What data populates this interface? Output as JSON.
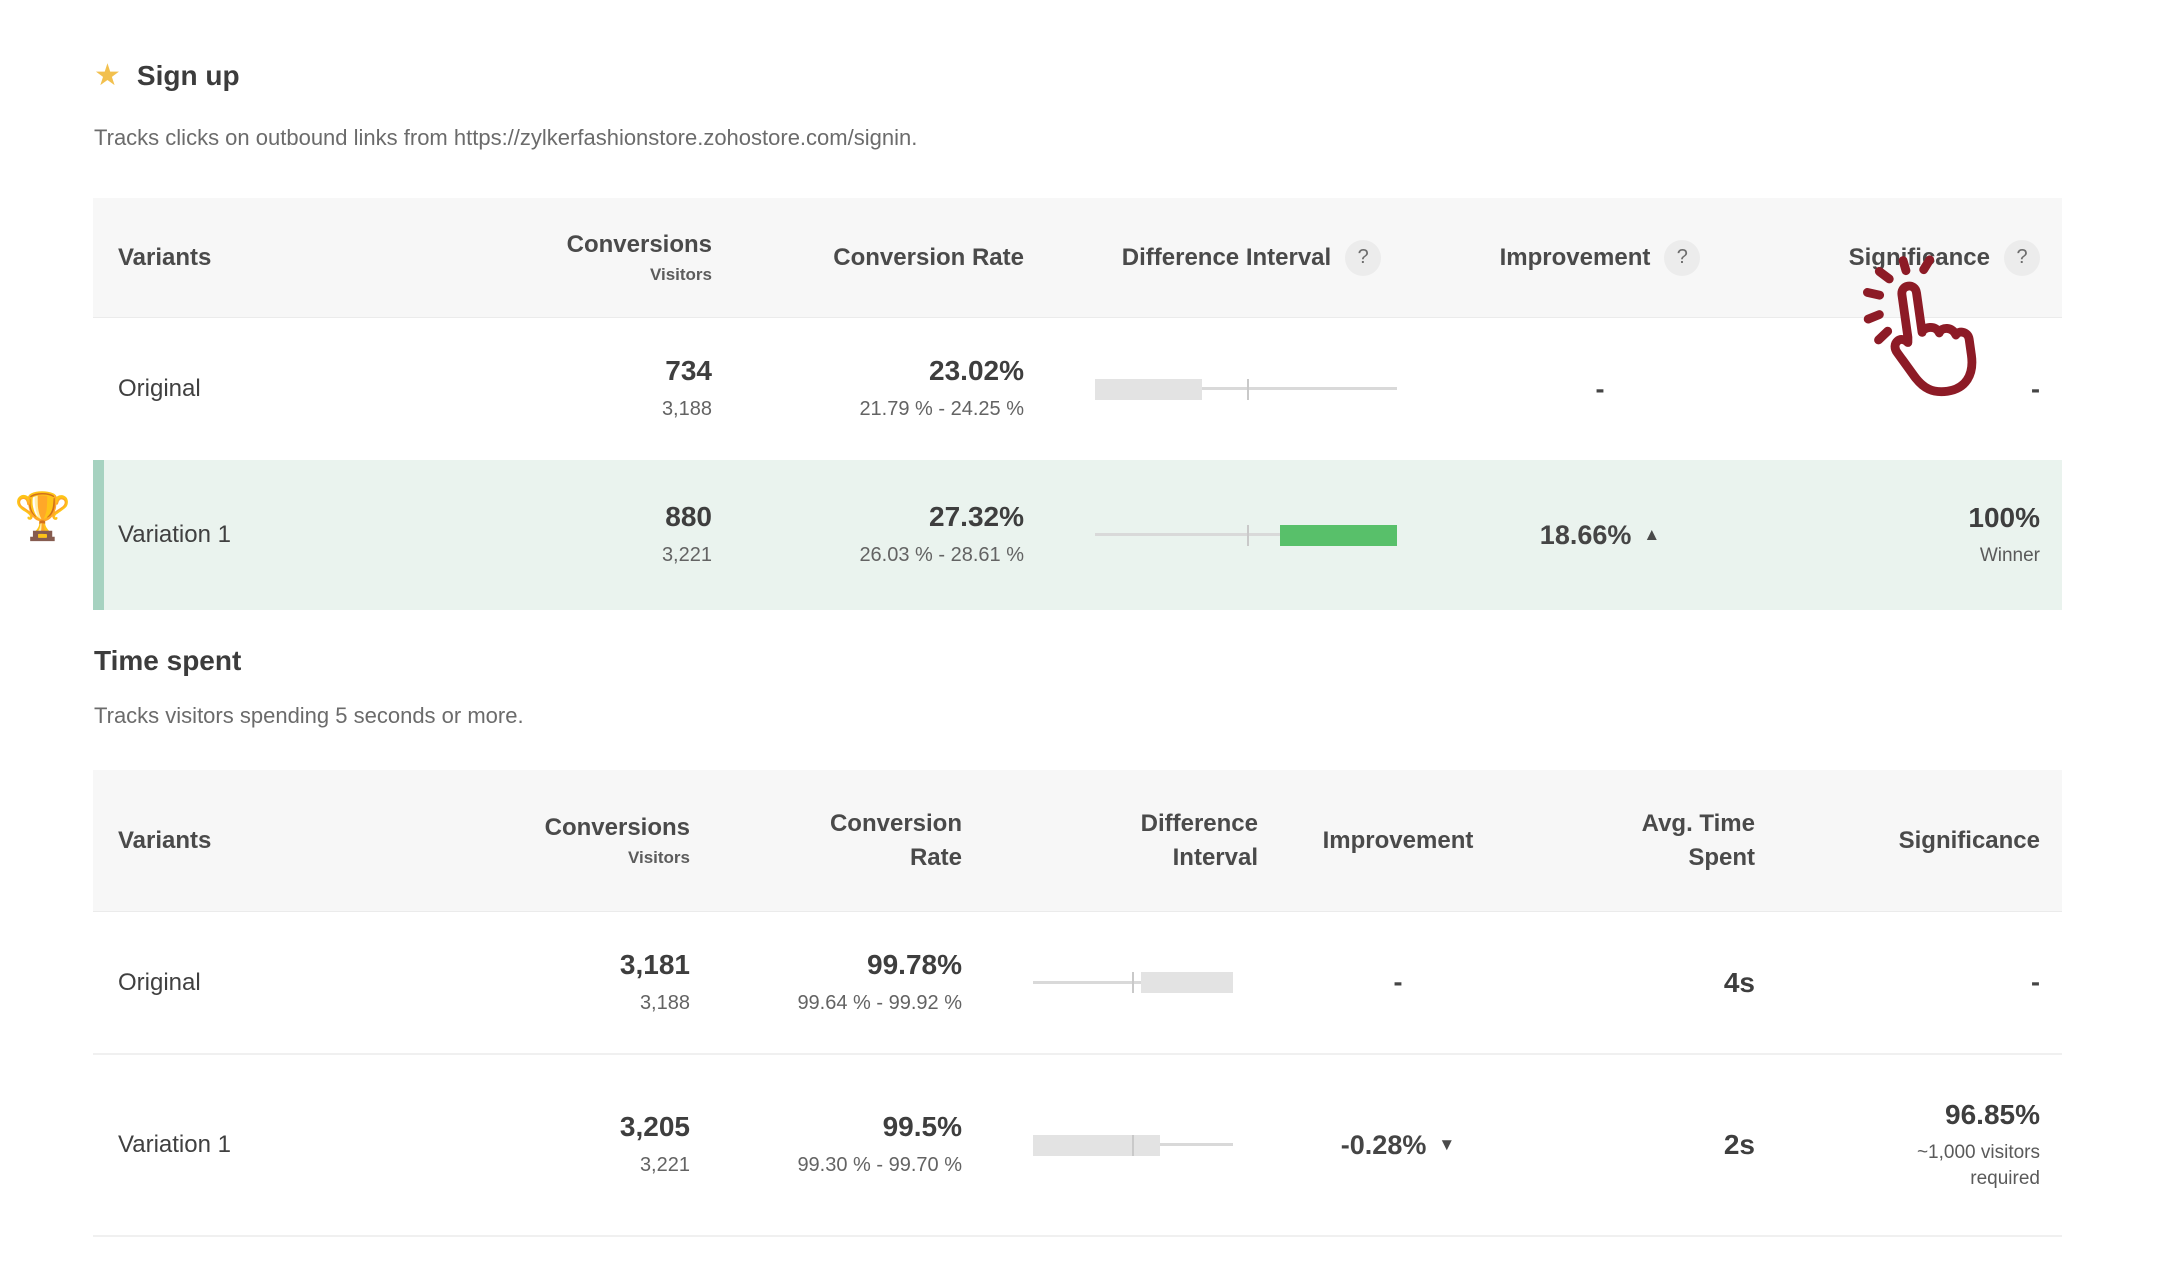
{
  "colors": {
    "winner_row_bg": "#eaf3ee",
    "winner_row_strip": "#a6d2c0",
    "positive_bar": "#58c06a",
    "neutral_bar": "#e3e3e3",
    "star": "#f2c04e",
    "cursor_red": "#8d1b26"
  },
  "goal_signup": {
    "star_glyph": "★",
    "title": "Sign up",
    "description": "Tracks clicks on outbound links from https://zylkerfashionstore.zohostore.com/signin.",
    "table": {
      "headers": {
        "variants": "Variants",
        "conversions": "Conversions",
        "conversions_sub": "Visitors",
        "conversion_rate": "Conversion Rate",
        "difference_interval": "Difference Interval",
        "improvement": "Improvement",
        "significance": "Significance",
        "help": "?"
      },
      "rows": [
        {
          "variant": "Original",
          "conversions": "734",
          "visitors": "3,188",
          "conversion_rate": "23.02%",
          "conversion_rate_interval": "21.79 % - 24.25 %",
          "improvement": "-",
          "improvement_arrow": "",
          "significance": "-",
          "significance_note": "",
          "interval": {
            "tick": 50.3,
            "bar_start": 0,
            "bar_end": 35.4,
            "color": "#e3e3e3"
          }
        },
        {
          "variant": "Variation 1",
          "trophy_glyph": "🏆",
          "conversions": "880",
          "visitors": "3,221",
          "conversion_rate": "27.32%",
          "conversion_rate_interval": "26.03 % - 28.61 %",
          "improvement": "18.66%",
          "improvement_arrow": "▲",
          "significance": "100%",
          "significance_note": "Winner",
          "interval": {
            "tick": 50.3,
            "bar_start": 61.3,
            "bar_end": 100,
            "color": "#58c06a"
          }
        }
      ]
    }
  },
  "goal_timespent": {
    "title": "Time spent",
    "description": "Tracks visitors spending 5 seconds or more.",
    "table": {
      "headers": {
        "variants": "Variants",
        "conversions": "Conversions",
        "conversions_sub": "Visitors",
        "conversion_rate": "Conversion\nRate",
        "difference_interval": "Difference\nInterval",
        "improvement": "Improvement",
        "avg_time_spent": "Avg. Time\nSpent",
        "significance": "Significance"
      },
      "rows": [
        {
          "variant": "Original",
          "conversions": "3,181",
          "visitors": "3,188",
          "conversion_rate": "99.78%",
          "conversion_rate_interval": "99.64 % - 99.92 %",
          "improvement": "-",
          "improvement_arrow": "",
          "avg_time_spent": "4s",
          "significance": "-",
          "significance_note": "",
          "interval": {
            "tick": 49.5,
            "bar_start": 54,
            "bar_end": 100,
            "color": "#e3e3e3"
          }
        },
        {
          "variant": "Variation 1",
          "conversions": "3,205",
          "visitors": "3,221",
          "conversion_rate": "99.5%",
          "conversion_rate_interval": "99.30 % - 99.70 %",
          "improvement": "-0.28%",
          "improvement_arrow": "▼",
          "avg_time_spent": "2s",
          "significance": "96.85%",
          "significance_note": "~1,000 visitors required",
          "interval": {
            "tick": 49.5,
            "bar_start": 0,
            "bar_end": 63.5,
            "color": "#e3e3e3"
          }
        }
      ]
    }
  }
}
